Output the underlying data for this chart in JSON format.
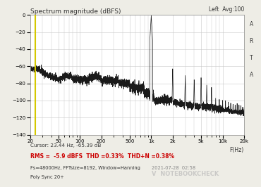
{
  "title": "Spectrum magnitude (dBFS)",
  "top_right_label": "Left  Avg:100",
  "right_label_chars": [
    "A",
    "R",
    "T",
    "A"
  ],
  "xlabel": "F(Hz)",
  "ylim": [
    -140.0,
    0.0
  ],
  "yticks": [
    0.0,
    -20.0,
    -40.0,
    -60.0,
    -80.0,
    -100.0,
    -120.0,
    -140.0
  ],
  "xmin": 20,
  "xmax": 20000,
  "xtick_labels": [
    "20",
    "50",
    "100",
    "200",
    "500",
    "1k",
    "2k",
    "5k",
    "10k",
    "20k"
  ],
  "xtick_values": [
    20,
    50,
    100,
    200,
    500,
    1000,
    2000,
    5000,
    10000,
    20000
  ],
  "cursor_text": "Cursor: 23.44 Hz, -65.39 dB",
  "rms_text": "RMS =  -5.9 dBFS  THD =0.33%  THD+N =0.38%",
  "info_text": "Fs=48000Hz, FFTsize=8192, Window=Hanning",
  "poly_text": "Poly Sync 20+",
  "date_text": "2021-07-28  02:58",
  "nb_text": "NOTEBOOKCHECK",
  "background_color": "#eeede6",
  "plot_bg_color": "#ffffff",
  "line_color": "#1a1a1a",
  "grid_color": "#c8c8c8",
  "cursor_line_color": "#d4c800",
  "rms_text_color": "#cc0000",
  "cursor_freq": 23.44,
  "noise_floor_low_freq": -65,
  "noise_floor_mid": -78,
  "noise_floor_high": -115
}
